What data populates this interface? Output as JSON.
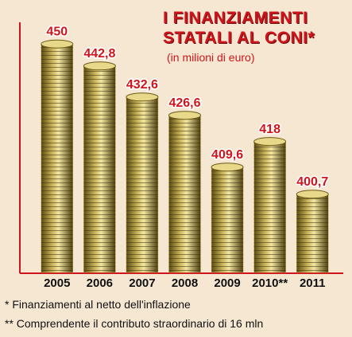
{
  "chart_data": {
    "type": "bar",
    "title": "I FINANZIAMENTI STATALI AL CONI*",
    "subtitle": "(in milioni di euro)",
    "categories": [
      "2005",
      "2006",
      "2007",
      "2008",
      "2009",
      "2010**",
      "2011"
    ],
    "values": [
      450,
      442.8,
      432.6,
      426.6,
      409.6,
      418,
      400.7
    ],
    "value_labels": [
      "450",
      "442,8",
      "432,6",
      "426,6",
      "409,6",
      "418",
      "400,7"
    ],
    "color": "#c9b45a",
    "ylim": [
      375,
      460
    ],
    "notes": [
      "* Finanziamenti al netto dell'inflazione",
      "** Comprendente il contributo straordinario di 16 mln"
    ]
  }
}
